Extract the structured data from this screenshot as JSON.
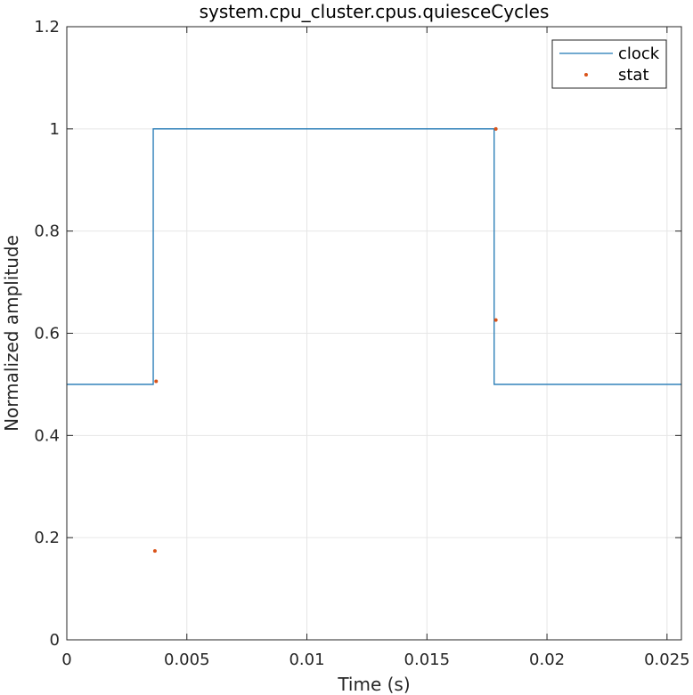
{
  "chart_data": {
    "type": "line",
    "title": "system.cpu_cluster.cpus.quiesceCycles",
    "xlabel": "Time (s)",
    "ylabel": "Normalized amplitude",
    "xlim": [
      0,
      0.0256
    ],
    "ylim": [
      0,
      1.2
    ],
    "xticks": [
      0,
      0.005,
      0.01,
      0.015,
      0.02,
      0.025
    ],
    "xtick_labels": [
      "0",
      "0.005",
      "0.01",
      "0.015",
      "0.02",
      "0.025"
    ],
    "yticks": [
      0,
      0.2,
      0.4,
      0.6,
      0.8,
      1,
      1.2
    ],
    "ytick_labels": [
      "0",
      "0.2",
      "0.4",
      "0.6",
      "0.8",
      "1",
      "1.2"
    ],
    "grid": true,
    "legend_location": "top-right",
    "series": [
      {
        "name": "clock",
        "style": "line",
        "color": "#1f77b4",
        "x": [
          0,
          0.0036,
          0.0036,
          0.0178,
          0.0178,
          0.0256
        ],
        "y": [
          0.5,
          0.5,
          1.0,
          1.0,
          0.5,
          0.5
        ]
      },
      {
        "name": "stat",
        "style": "markers",
        "color": "#d95319",
        "x": [
          0.00367,
          0.00372,
          0.01787,
          0.01787
        ],
        "y": [
          0.174,
          0.506,
          1.0,
          0.626
        ]
      }
    ]
  }
}
